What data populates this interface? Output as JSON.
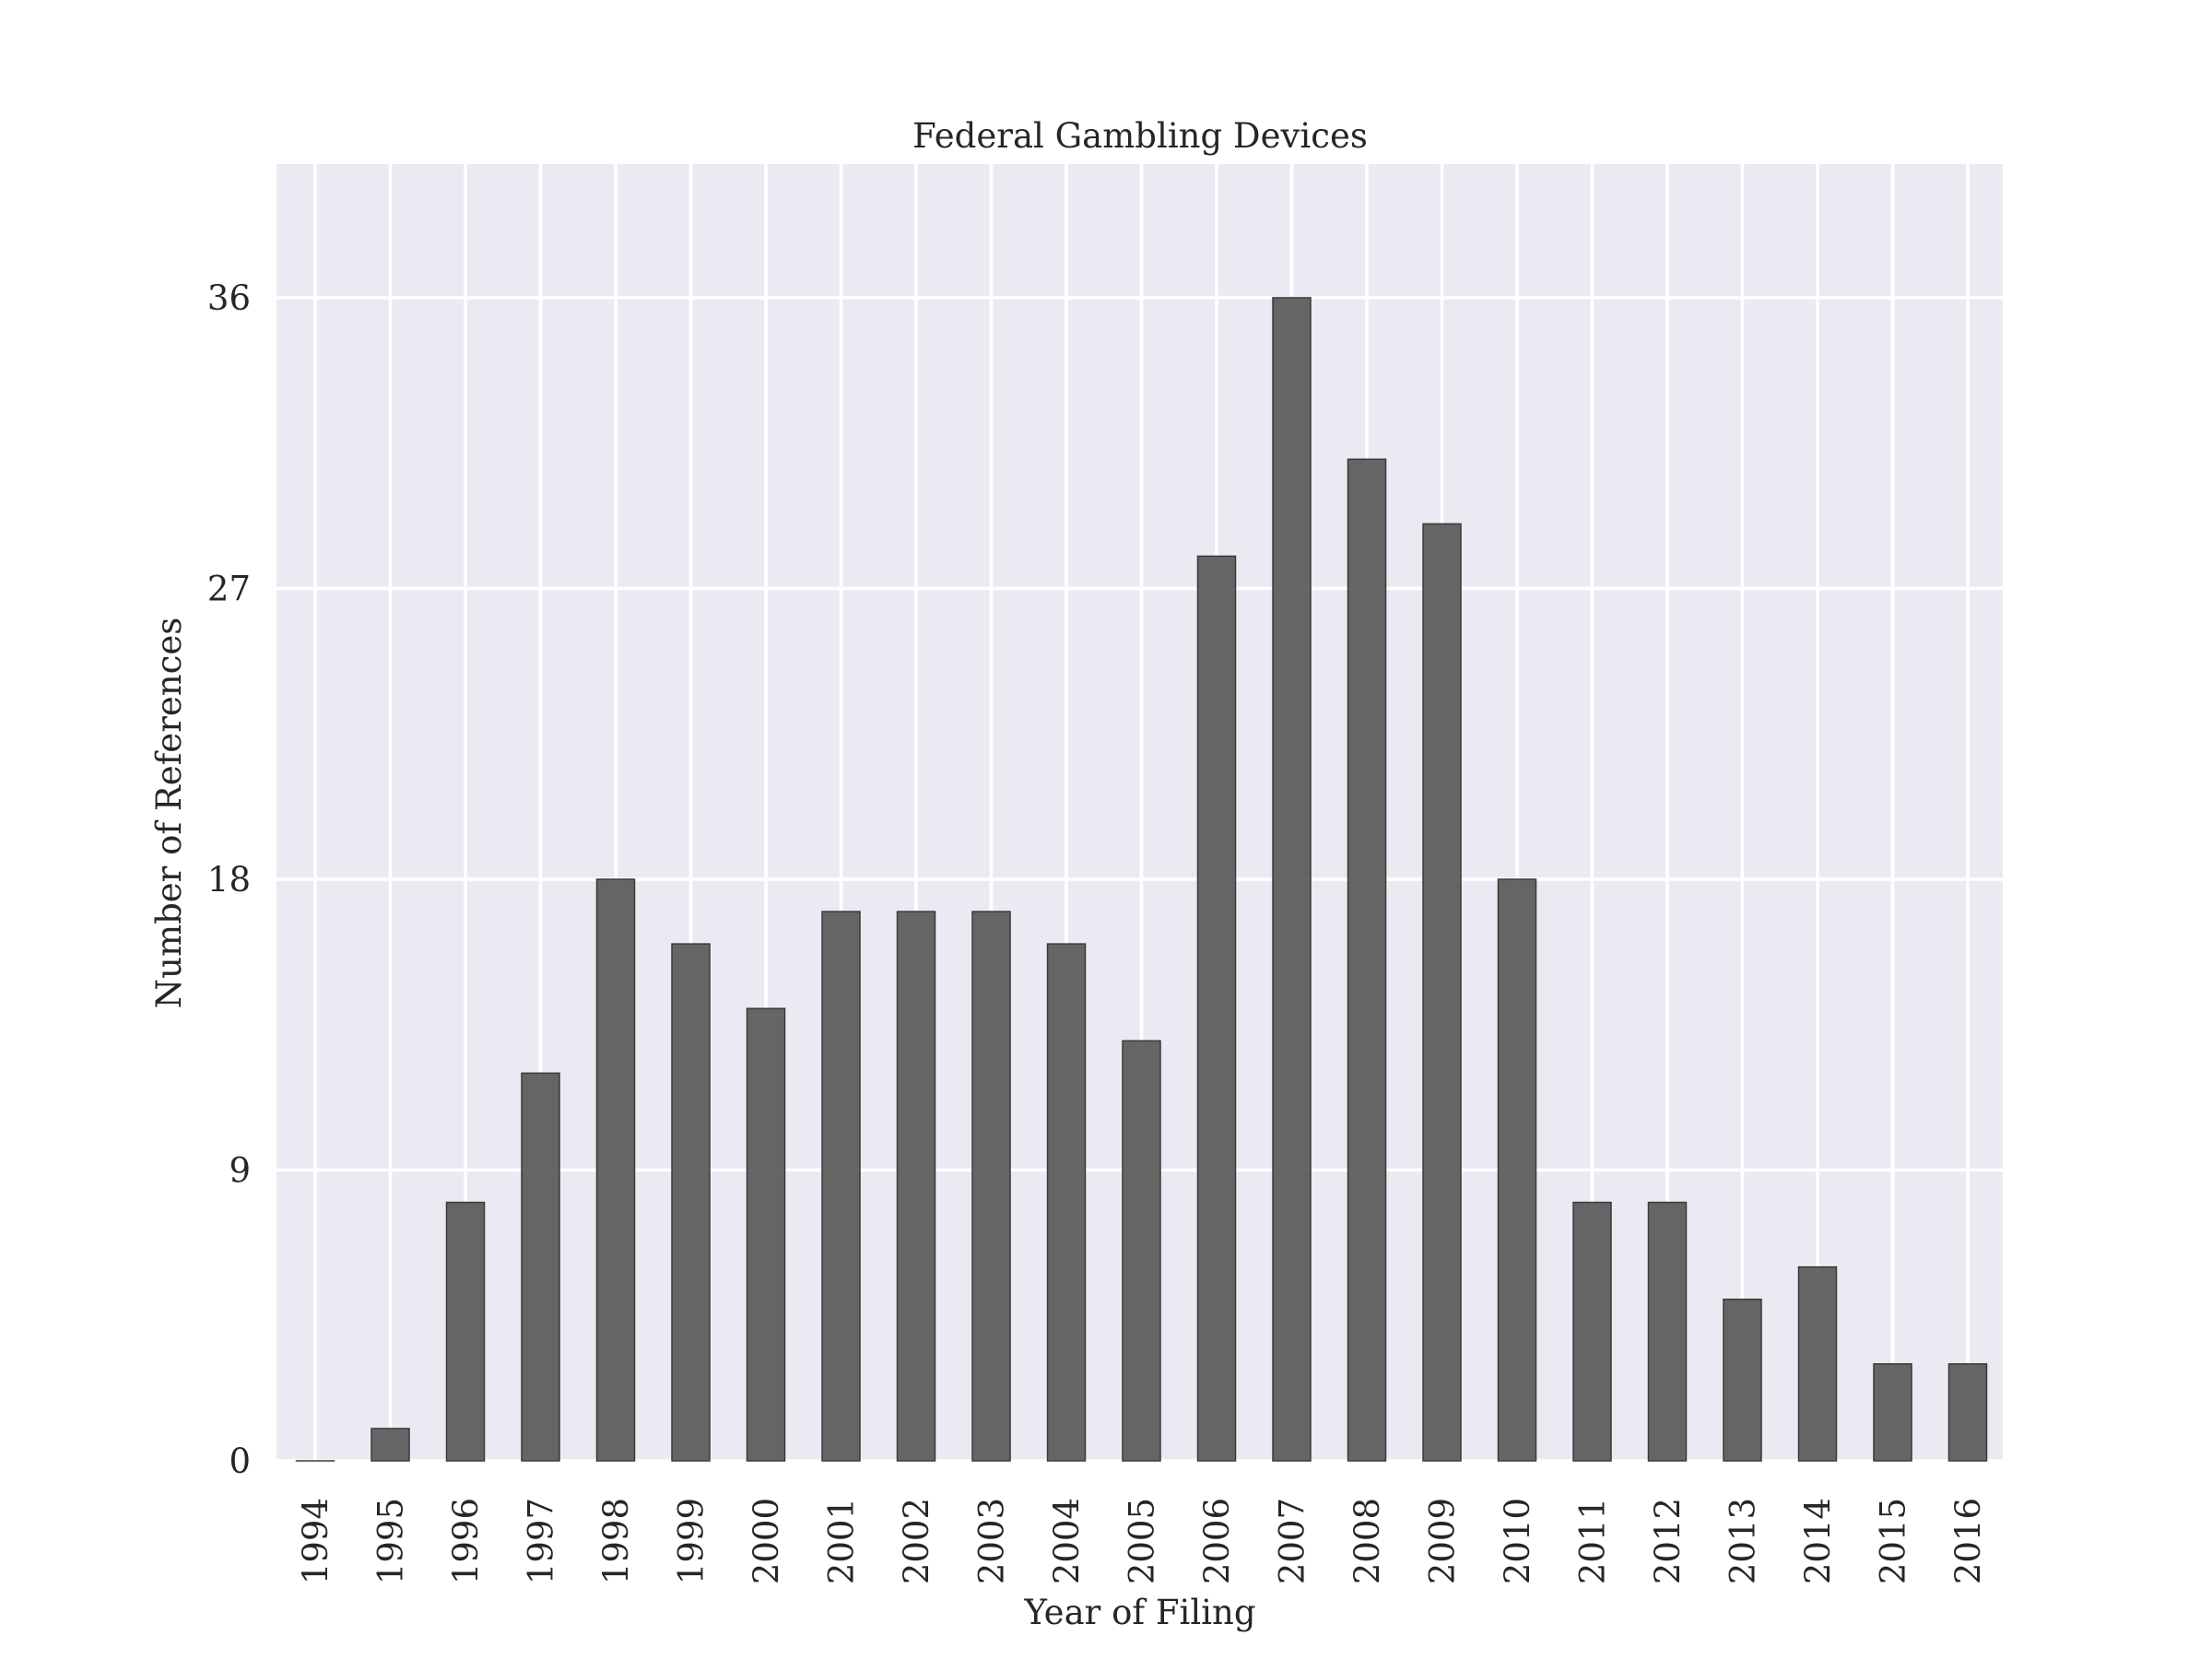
{
  "chart_data": {
    "type": "bar",
    "title": "Federal Gambling Devices",
    "xlabel": "Year of Filing",
    "ylabel": "Number of References",
    "categories": [
      "1994",
      "1995",
      "1996",
      "1997",
      "1998",
      "1999",
      "2000",
      "2001",
      "2002",
      "2003",
      "2004",
      "2005",
      "2006",
      "2007",
      "2008",
      "2009",
      "2010",
      "2011",
      "2012",
      "2013",
      "2014",
      "2015",
      "2016"
    ],
    "values": [
      0,
      1,
      8,
      12,
      18,
      16,
      14,
      17,
      17,
      17,
      16,
      13,
      28,
      36,
      31,
      29,
      18,
      8,
      8,
      5,
      6,
      3,
      3
    ],
    "yticks": [
      0,
      9,
      18,
      27,
      36
    ],
    "ylim": [
      0,
      40
    ],
    "grid": true,
    "legend": "none",
    "colors": {
      "background": "#eaeaf2",
      "bar": "#5a5a5a",
      "grid": "#ffffff"
    }
  }
}
